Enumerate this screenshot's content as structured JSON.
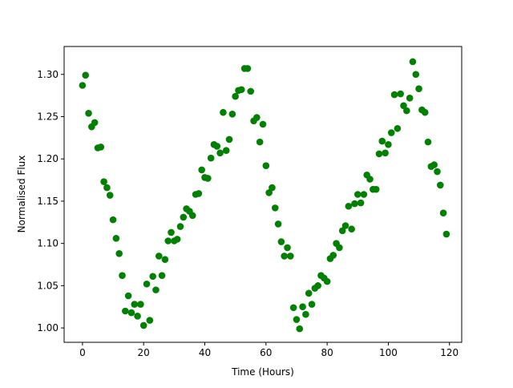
{
  "chart_data": {
    "type": "scatter",
    "title": "",
    "xlabel": "Time (Hours)",
    "ylabel": "Normalised Flux",
    "xlim": [
      -6,
      124
    ],
    "ylim": [
      0.983,
      1.333
    ],
    "grid": false,
    "marker_color": "#008000",
    "x_ticks": [
      0,
      20,
      40,
      60,
      80,
      100,
      120
    ],
    "x_tick_labels": [
      "0",
      "20",
      "40",
      "60",
      "80",
      "100",
      "120"
    ],
    "y_ticks": [
      1.0,
      1.05,
      1.1,
      1.15,
      1.2,
      1.25,
      1.3
    ],
    "y_tick_labels": [
      "1.00",
      "1.05",
      "1.10",
      "1.15",
      "1.20",
      "1.25",
      "1.30"
    ],
    "series": [
      {
        "x": [
          0,
          1,
          2,
          3,
          4,
          5,
          6,
          7,
          8,
          9,
          10,
          11,
          12,
          13,
          14,
          15,
          16,
          17,
          18,
          19,
          20,
          21,
          22,
          23,
          24,
          25,
          26,
          27,
          28,
          29,
          30,
          31,
          32,
          33,
          34,
          35,
          36,
          37,
          38,
          39,
          40,
          41,
          42,
          43,
          44,
          45,
          46,
          47,
          48,
          49,
          50,
          51,
          52,
          53,
          54,
          55,
          56,
          57,
          58,
          59,
          60,
          61,
          62,
          63,
          64,
          65,
          66,
          67,
          68,
          69,
          70,
          71,
          72,
          73,
          74,
          75,
          76,
          77,
          78,
          79,
          80,
          81,
          82,
          83,
          84,
          85,
          86,
          87,
          88,
          89,
          90,
          91,
          92,
          93,
          94,
          95,
          96,
          97,
          98,
          99,
          100,
          101,
          102,
          103,
          104,
          105,
          106,
          107,
          108,
          109,
          110,
          111,
          112,
          113,
          114,
          115,
          116,
          117,
          118,
          119
        ],
        "y": [
          1.287,
          1.299,
          1.254,
          1.238,
          1.243,
          1.213,
          1.214,
          1.173,
          1.166,
          1.157,
          1.128,
          1.106,
          1.088,
          1.062,
          1.02,
          1.038,
          1.018,
          1.028,
          1.014,
          1.028,
          1.003,
          1.052,
          1.009,
          1.061,
          1.045,
          1.085,
          1.062,
          1.081,
          1.103,
          1.113,
          1.103,
          1.105,
          1.12,
          1.131,
          1.141,
          1.138,
          1.133,
          1.158,
          1.159,
          1.187,
          1.178,
          1.177,
          1.201,
          1.217,
          1.215,
          1.207,
          1.255,
          1.21,
          1.223,
          1.253,
          1.274,
          1.281,
          1.282,
          1.307,
          1.307,
          1.28,
          1.245,
          1.249,
          1.22,
          1.241,
          1.192,
          1.16,
          1.166,
          1.142,
          1.123,
          1.102,
          1.085,
          1.095,
          1.085,
          1.024,
          1.01,
          0.999,
          1.025,
          1.016,
          1.041,
          1.028,
          1.047,
          1.05,
          1.062,
          1.059,
          1.055,
          1.082,
          1.086,
          1.1,
          1.095,
          1.115,
          1.121,
          1.144,
          1.117,
          1.147,
          1.158,
          1.148,
          1.158,
          1.181,
          1.176,
          1.164,
          1.164,
          1.206,
          1.221,
          1.207,
          1.217,
          1.231,
          1.276,
          1.236,
          1.277,
          1.263,
          1.257,
          1.272,
          1.315,
          1.3,
          1.283,
          1.258,
          1.255,
          1.22,
          1.191,
          1.193,
          1.185,
          1.169,
          1.136,
          1.111
        ]
      }
    ]
  }
}
